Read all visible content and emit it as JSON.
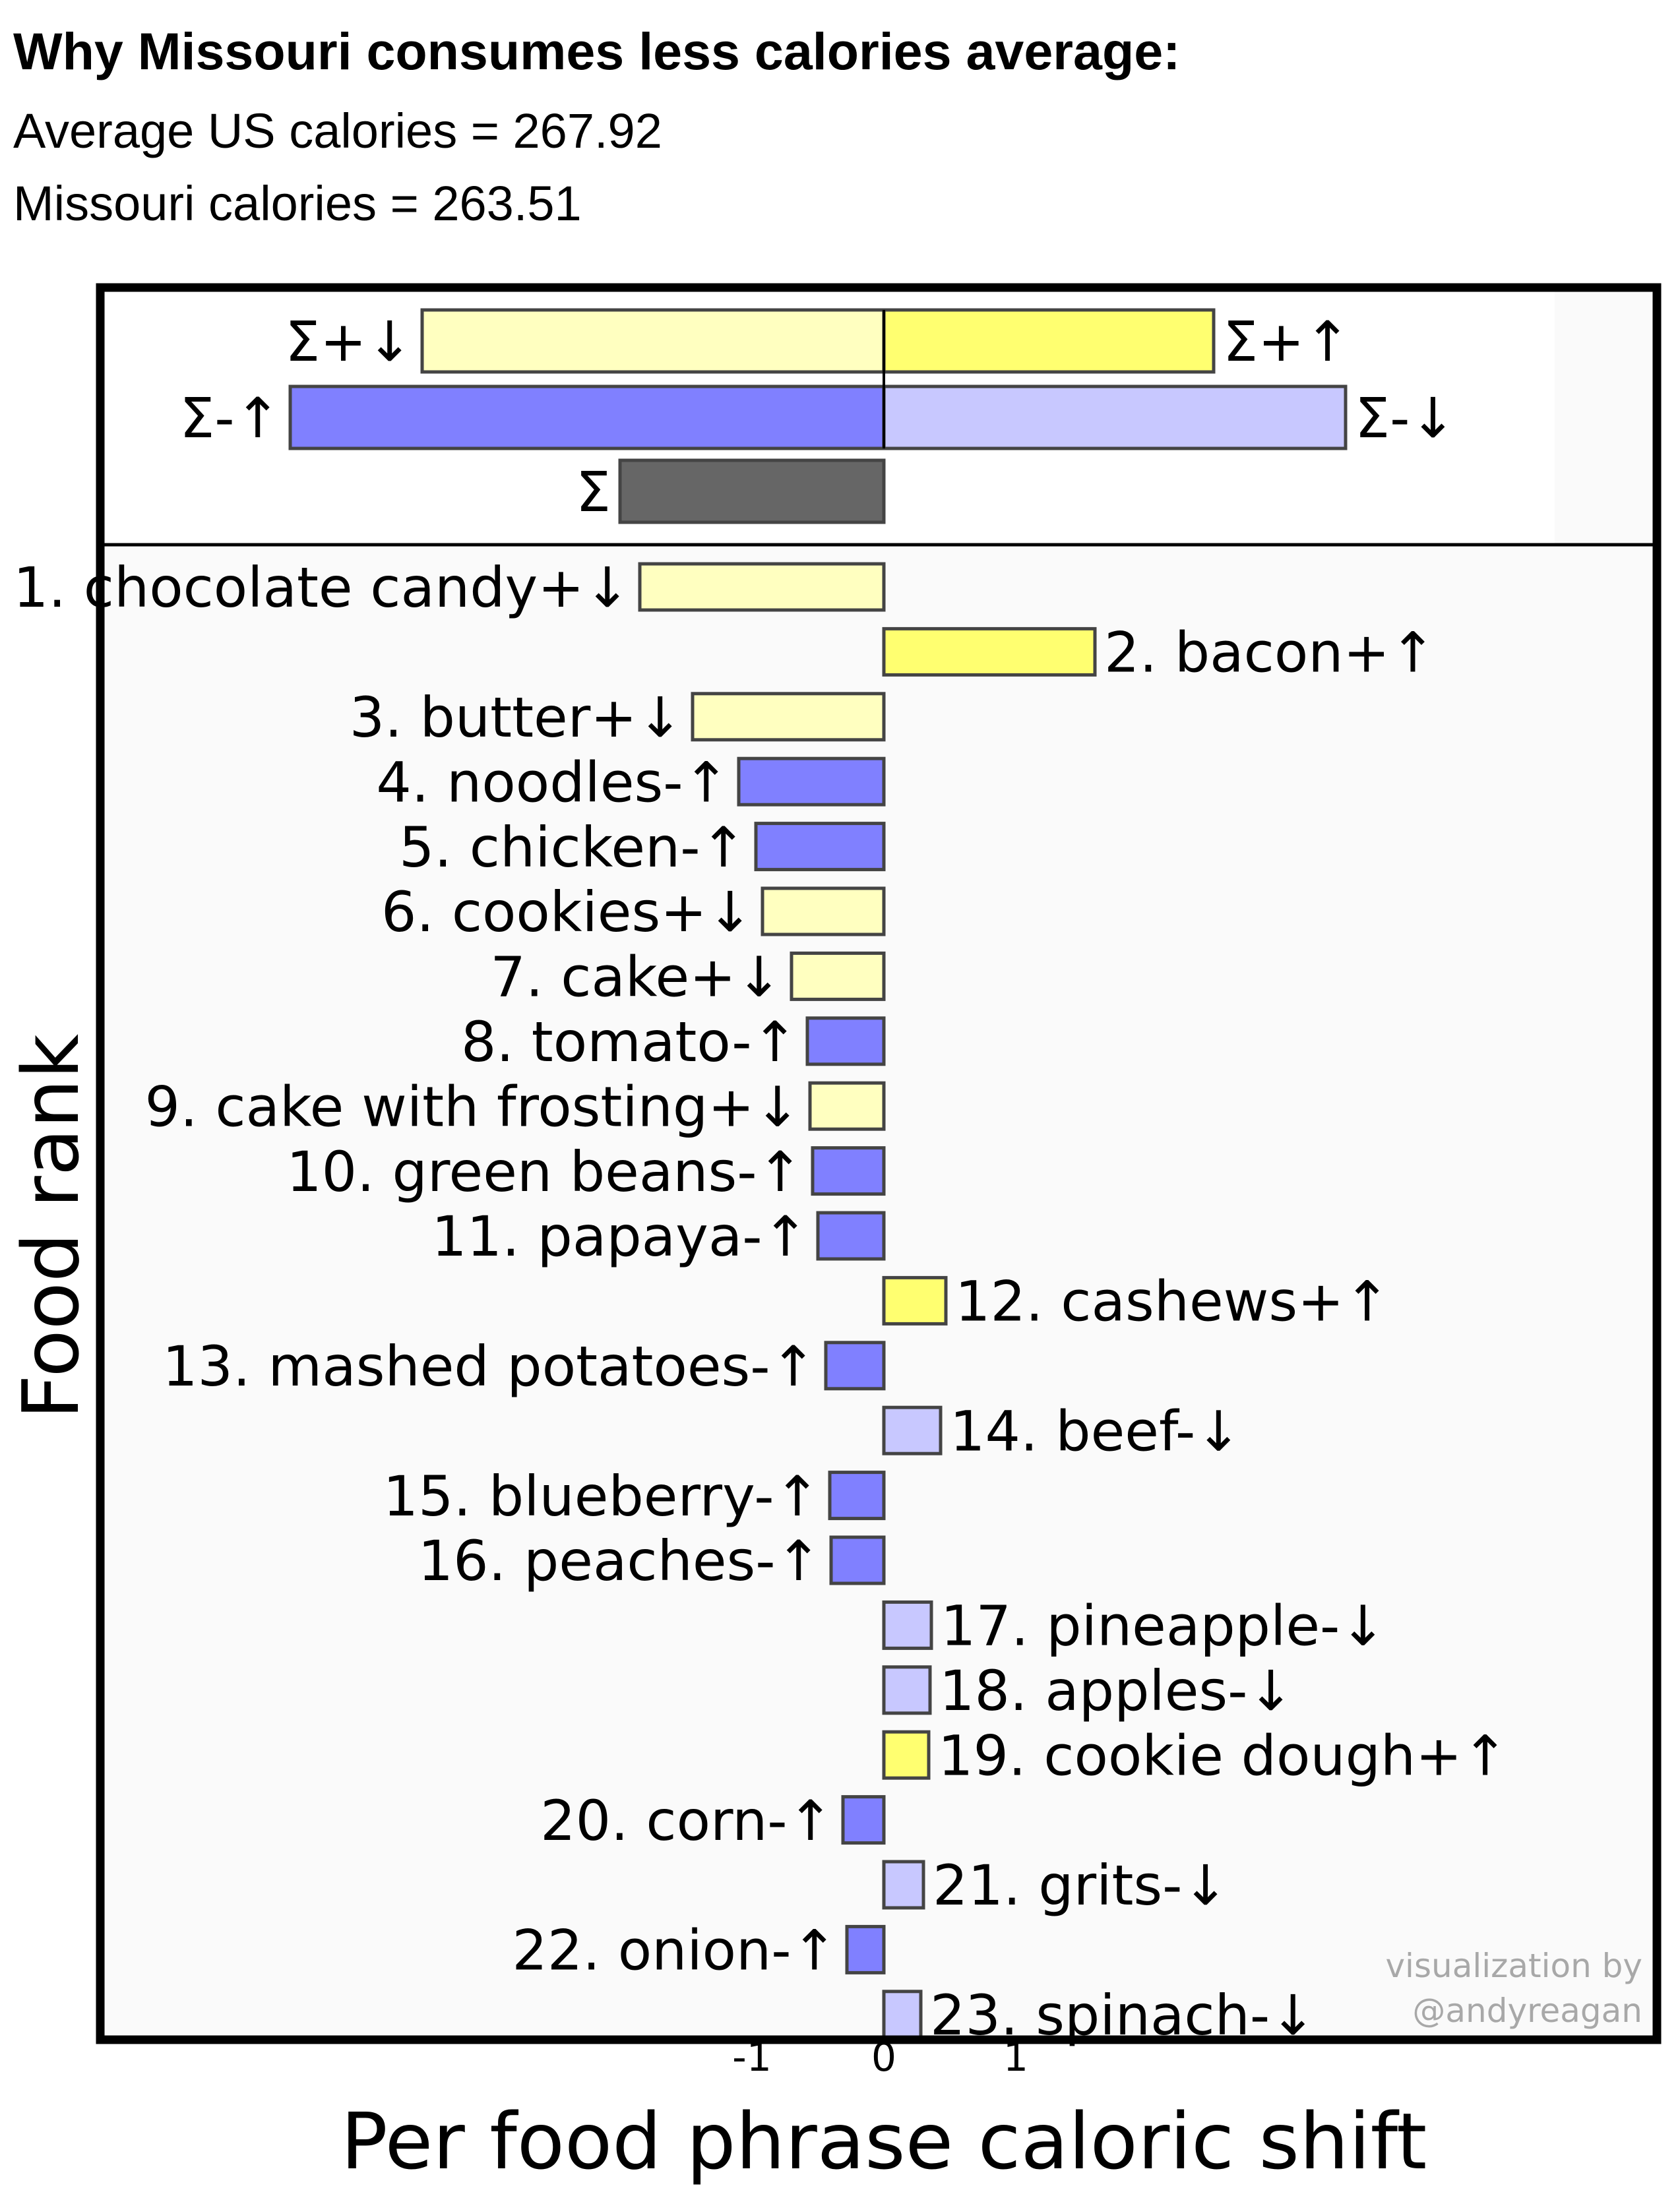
{
  "header": {
    "title": "Why Missouri consumes less calories average:",
    "line1": "Average US calories = 267.92",
    "line2": "Missouri calories = 263.51"
  },
  "colors": {
    "plus_down": "#ffffc0",
    "plus_up": "#ffff70",
    "minus_up": "#8080ff",
    "minus_down": "#c8c8ff",
    "total": "#666666"
  },
  "chart_data": {
    "type": "bar",
    "orientation": "horizontal",
    "xlabel": "Per food phrase caloric shift",
    "ylabel": "Food rank",
    "xticks": [
      "-1",
      "0",
      "1"
    ],
    "xlim": [
      -6.6,
      5.3
    ],
    "summary": [
      {
        "label": "Σ+↓",
        "value": -3.5,
        "kind": "plus_down",
        "label_side": "left"
      },
      {
        "label": "Σ+↑",
        "value": 2.5,
        "kind": "plus_up",
        "label_side": "right"
      },
      {
        "label": "Σ-↑",
        "value": -4.5,
        "kind": "minus_up",
        "label_side": "left"
      },
      {
        "label": "Σ-↓",
        "value": 3.5,
        "kind": "minus_down",
        "label_side": "right"
      },
      {
        "label": "Σ",
        "value": -2.0,
        "kind": "total",
        "label_side": "left"
      }
    ],
    "items": [
      {
        "label": "1. chocolate candy+↓",
        "value": -1.85,
        "kind": "plus_down"
      },
      {
        "label": "2. bacon+↑",
        "value": 1.6,
        "kind": "plus_up"
      },
      {
        "label": "3. butter+↓",
        "value": -1.45,
        "kind": "plus_down"
      },
      {
        "label": "4. noodles-↑",
        "value": -1.1,
        "kind": "minus_up"
      },
      {
        "label": "5. chicken-↑",
        "value": -0.97,
        "kind": "minus_up"
      },
      {
        "label": "6. cookies+↓",
        "value": -0.92,
        "kind": "plus_down"
      },
      {
        "label": "7. cake+↓",
        "value": -0.7,
        "kind": "plus_down"
      },
      {
        "label": "8. tomato-↑",
        "value": -0.58,
        "kind": "minus_up"
      },
      {
        "label": "9. cake with frosting+↓",
        "value": -0.56,
        "kind": "plus_down"
      },
      {
        "label": "10. green beans-↑",
        "value": -0.54,
        "kind": "minus_up"
      },
      {
        "label": "11. papaya-↑",
        "value": -0.5,
        "kind": "minus_up"
      },
      {
        "label": "12. cashews+↑",
        "value": 0.47,
        "kind": "plus_up"
      },
      {
        "label": "13. mashed potatoes-↑",
        "value": -0.44,
        "kind": "minus_up"
      },
      {
        "label": "14. beef-↓",
        "value": 0.43,
        "kind": "minus_down"
      },
      {
        "label": "15. blueberry-↑",
        "value": -0.41,
        "kind": "minus_up"
      },
      {
        "label": "16. peaches-↑",
        "value": -0.4,
        "kind": "minus_up"
      },
      {
        "label": "17. pineapple-↓",
        "value": 0.36,
        "kind": "minus_down"
      },
      {
        "label": "18. apples-↓",
        "value": 0.35,
        "kind": "minus_down"
      },
      {
        "label": "19. cookie dough+↑",
        "value": 0.34,
        "kind": "plus_up"
      },
      {
        "label": "20. corn-↑",
        "value": -0.31,
        "kind": "minus_up"
      },
      {
        "label": "21. grits-↓",
        "value": 0.3,
        "kind": "minus_down"
      },
      {
        "label": "22. onion-↑",
        "value": -0.28,
        "kind": "minus_up"
      },
      {
        "label": "23. spinach-↓",
        "value": 0.28,
        "kind": "minus_down"
      }
    ]
  },
  "credit": {
    "line1": "visualization by",
    "line2": "@andyreagan"
  }
}
